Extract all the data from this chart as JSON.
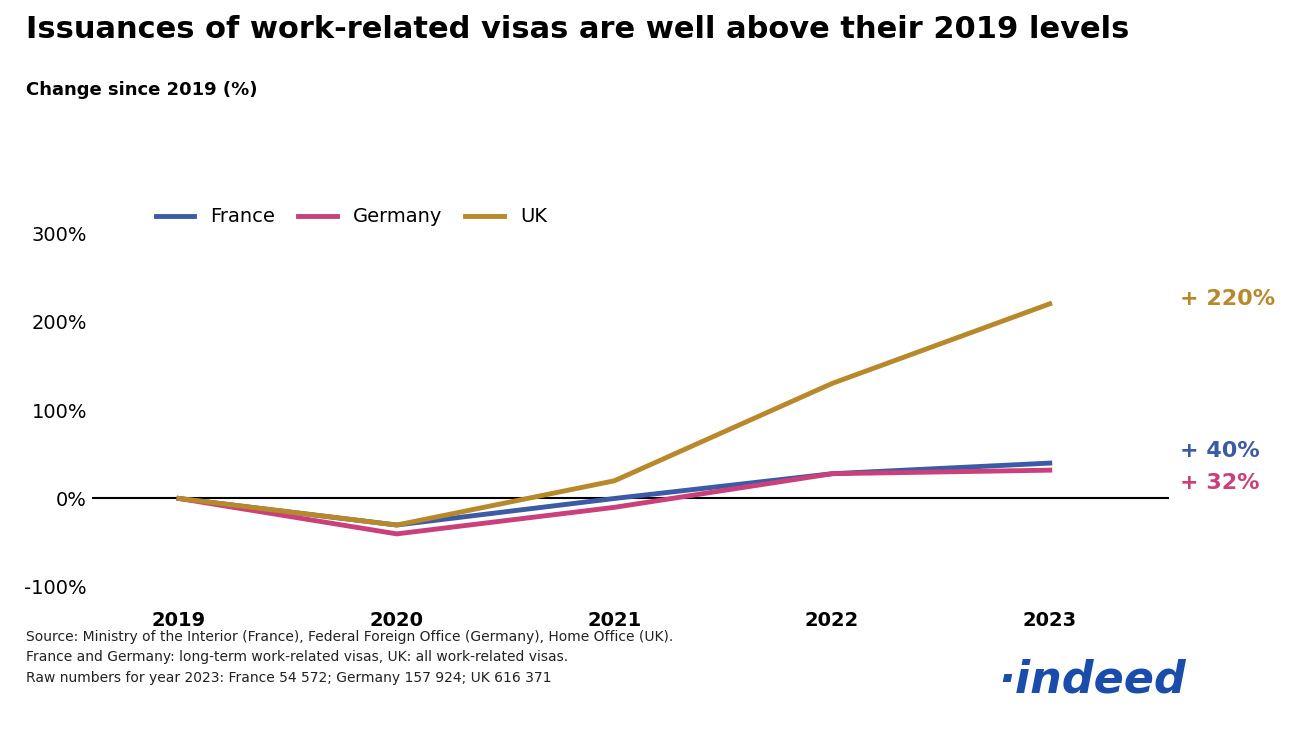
{
  "title": "Issuances of work-related visas are well above their 2019 levels",
  "subtitle": "Change since 2019 (%)",
  "years": [
    2019,
    2020,
    2021,
    2022,
    2023
  ],
  "france": [
    0,
    -30,
    0,
    28,
    40
  ],
  "germany": [
    0,
    -40,
    -10,
    28,
    32
  ],
  "uk": [
    0,
    -30,
    20,
    130,
    220
  ],
  "france_color": "#3B5BA5",
  "germany_color": "#C9407A",
  "uk_color": "#B8892A",
  "france_label": "France",
  "germany_label": "Germany",
  "uk_label": "UK",
  "france_end_label": "+ 40%",
  "germany_end_label": "+ 32%",
  "uk_end_label": "+ 220%",
  "yticks": [
    -100,
    0,
    100,
    200,
    300
  ],
  "ytick_labels": [
    "-100%",
    "0%",
    "100%",
    "200%",
    "300%"
  ],
  "ylim": [
    -115,
    340
  ],
  "xlim": [
    2018.6,
    2023.55
  ],
  "source_text": "Source: Ministry of the Interior (France), Federal Foreign Office (Germany), Home Office (UK).\nFrance and Germany: long-term work-related visas, UK: all work-related visas.\nRaw numbers for year 2023: France 54 572; Germany 157 924; UK 616 371",
  "line_width": 3.5,
  "background_color": "#FFFFFF",
  "title_fontsize": 22,
  "subtitle_fontsize": 13,
  "tick_fontsize": 14,
  "legend_fontsize": 14,
  "annotation_fontsize": 16,
  "source_fontsize": 10,
  "indeed_color": "#1A4DAB"
}
